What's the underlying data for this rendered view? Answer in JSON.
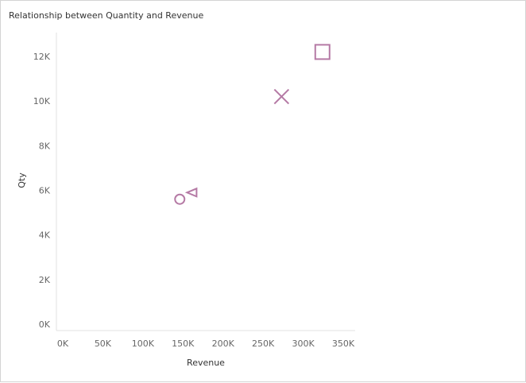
{
  "title": "Relationship between Quantity and Revenue",
  "colors": {
    "marker": "#b57aa5",
    "axis": "#e2e2e2"
  },
  "chart_data": {
    "type": "scatter",
    "title": "Relationship between Quantity and Revenue",
    "xlabel": "Revenue",
    "ylabel": "Qty",
    "xlim": [
      0,
      350000
    ],
    "ylim": [
      0,
      12000
    ],
    "x_ticks": [
      0,
      50000,
      100000,
      150000,
      200000,
      250000,
      300000,
      350000
    ],
    "x_tick_labels": [
      "0K",
      "50K",
      "100K",
      "150K",
      "200K",
      "250K",
      "300K",
      "350K"
    ],
    "y_ticks": [
      0,
      2000,
      4000,
      6000,
      8000,
      10000,
      12000
    ],
    "y_tick_labels": [
      "0K",
      "2K",
      "4K",
      "6K",
      "8K",
      "10K",
      "12K"
    ],
    "grid": false,
    "points": [
      {
        "x": 146000,
        "y": 5600,
        "marker": "circle"
      },
      {
        "x": 161000,
        "y": 5900,
        "marker": "triangle-left"
      },
      {
        "x": 273000,
        "y": 10200,
        "marker": "x"
      },
      {
        "x": 324000,
        "y": 12200,
        "marker": "square"
      }
    ]
  }
}
